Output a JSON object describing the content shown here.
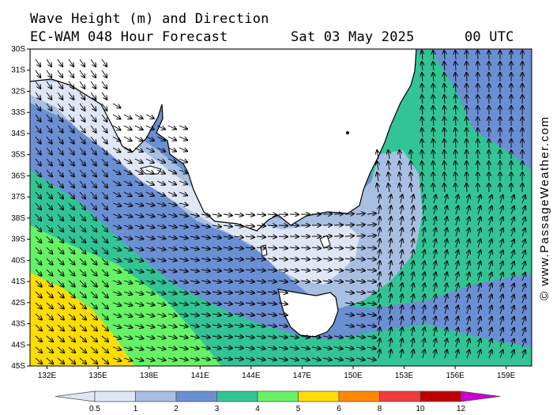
{
  "header": {
    "title": "Wave Height (m) and Direction",
    "model": "EC-WAM 048 Hour Forecast",
    "date": "Sat 03 May 2025",
    "time": "00 UTC"
  },
  "credit": "© www.PassageWeather.com",
  "lat_labels": [
    "30S",
    "31S",
    "32S",
    "33S",
    "34S",
    "35S",
    "36S",
    "37S",
    "38S",
    "39S",
    "40S",
    "41S",
    "42S",
    "43S",
    "44S",
    "45S"
  ],
  "lon_labels": [
    "132E",
    "135E",
    "138E",
    "141E",
    "144E",
    "147E",
    "150E",
    "153E",
    "156E",
    "159E"
  ],
  "legend": {
    "labels": [
      "0.5",
      "1",
      "2",
      "3",
      "4",
      "5",
      "6",
      "8",
      "10",
      "12"
    ],
    "colors": [
      "#dfe6f4",
      "#a8bfe2",
      "#6b8fd3",
      "#33c495",
      "#66f266",
      "#ffdd00",
      "#ff8800",
      "#f03c3c",
      "#c00000",
      "#cc00cc"
    ]
  },
  "colors": {
    "land": "#ffffff",
    "h05": "#dfe6f4",
    "h1": "#a8bfe2",
    "h2": "#6b8fd3",
    "h3": "#33c495",
    "h4": "#66f266",
    "h5": "#ffdd00"
  }
}
